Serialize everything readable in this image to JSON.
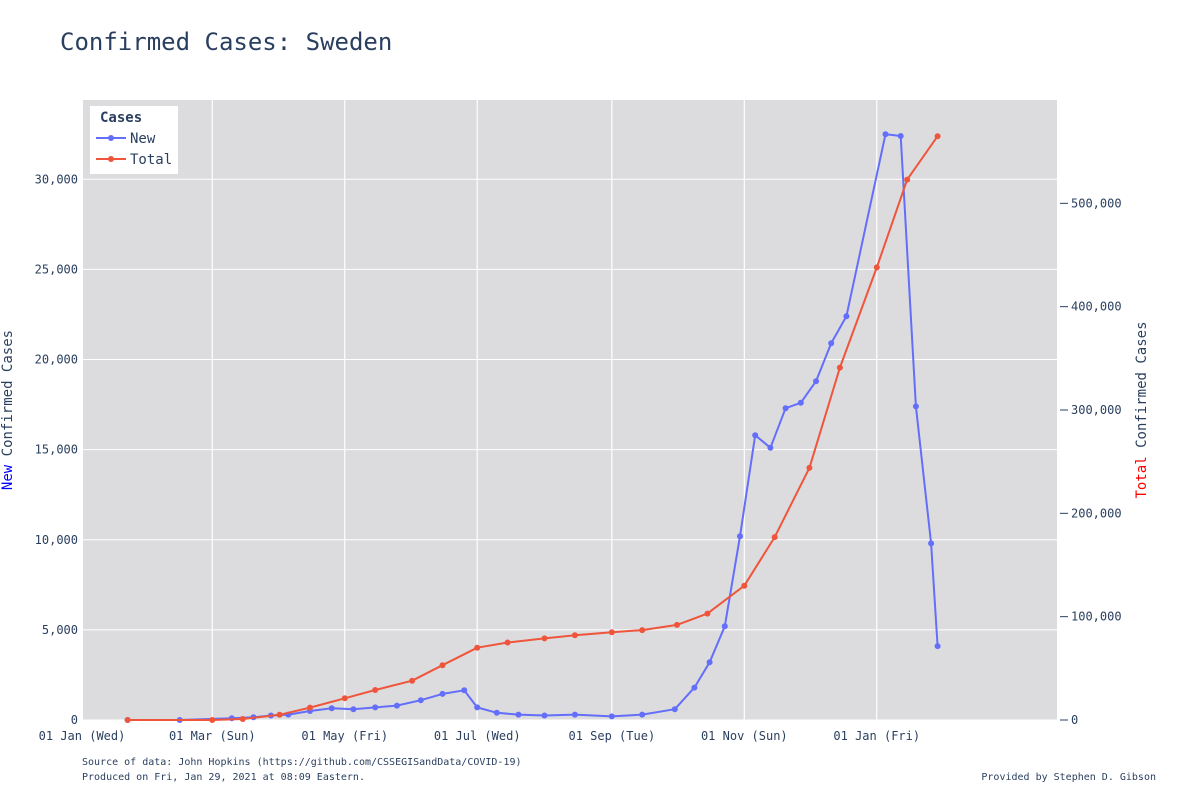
{
  "chart_data": {
    "type": "line",
    "title": "Confirmed Cases: Sweden",
    "legend": {
      "title": "Cases",
      "placement": "top-left"
    },
    "y_left": {
      "label_prefix": "New",
      "label_rest": " Confirmed Cases",
      "prefix_color": "#0000ff",
      "ylim": [
        0,
        34400
      ],
      "ticks": [
        0,
        5000,
        10000,
        15000,
        20000,
        25000,
        30000
      ],
      "tick_labels": [
        "0",
        "5,000",
        "10,000",
        "15,000",
        "20,000",
        "25,000",
        "30,000"
      ]
    },
    "y_right": {
      "label_prefix": "Total",
      "label_rest": " Confirmed Cases",
      "prefix_color": "#ff0000",
      "ylim": [
        0,
        600000
      ],
      "ticks": [
        0,
        100000,
        200000,
        300000,
        400000,
        500000
      ],
      "tick_labels": [
        "0",
        "100,000",
        "200,000",
        "300,000",
        "400,000",
        "500,000"
      ]
    },
    "x_axis": {
      "range_start": "2020-01-01",
      "range_end": "2021-03-25",
      "ticks": [
        "2020-01-01",
        "2020-03-01",
        "2020-05-01",
        "2020-07-01",
        "2020-09-01",
        "2020-11-01",
        "2021-01-01"
      ],
      "tick_labels": [
        "01 Jan (Wed)",
        "01 Mar (Sun)",
        "01 May (Fri)",
        "01 Jul (Wed)",
        "01 Sep (Tue)",
        "01 Nov (Sun)",
        "01 Jan (Fri)"
      ]
    },
    "grid": true,
    "series": [
      {
        "name": "New",
        "axis": "left",
        "color": "#636efa",
        "points": [
          [
            "2020-01-22",
            0
          ],
          [
            "2020-02-15",
            0
          ],
          [
            "2020-03-10",
            100
          ],
          [
            "2020-03-20",
            150
          ],
          [
            "2020-03-28",
            250
          ],
          [
            "2020-04-05",
            300
          ],
          [
            "2020-04-15",
            500
          ],
          [
            "2020-04-25",
            650
          ],
          [
            "2020-05-05",
            600
          ],
          [
            "2020-05-15",
            700
          ],
          [
            "2020-05-25",
            800
          ],
          [
            "2020-06-05",
            1100
          ],
          [
            "2020-06-15",
            1450
          ],
          [
            "2020-06-25",
            1650
          ],
          [
            "2020-07-01",
            700
          ],
          [
            "2020-07-10",
            400
          ],
          [
            "2020-07-20",
            300
          ],
          [
            "2020-08-01",
            250
          ],
          [
            "2020-08-15",
            300
          ],
          [
            "2020-09-01",
            200
          ],
          [
            "2020-09-15",
            300
          ],
          [
            "2020-09-30",
            600
          ],
          [
            "2020-10-09",
            1800
          ],
          [
            "2020-10-16",
            3200
          ],
          [
            "2020-10-23",
            5200
          ],
          [
            "2020-10-30",
            10200
          ],
          [
            "2020-11-06",
            15800
          ],
          [
            "2020-11-13",
            15100
          ],
          [
            "2020-11-20",
            17300
          ],
          [
            "2020-11-27",
            17600
          ],
          [
            "2020-12-04",
            18800
          ],
          [
            "2020-12-11",
            20900
          ],
          [
            "2020-12-18",
            22400
          ],
          [
            "2021-01-05",
            32500
          ],
          [
            "2021-01-12",
            32400
          ],
          [
            "2021-01-19",
            17400
          ],
          [
            "2021-01-26",
            9800
          ],
          [
            "2021-01-29",
            4100
          ]
        ]
      },
      {
        "name": "Total",
        "axis": "right",
        "color": "#ef553b",
        "points": [
          [
            "2020-01-22",
            0
          ],
          [
            "2020-03-01",
            14
          ],
          [
            "2020-03-15",
            1000
          ],
          [
            "2020-04-01",
            5000
          ],
          [
            "2020-04-15",
            12000
          ],
          [
            "2020-05-01",
            21000
          ],
          [
            "2020-05-15",
            29000
          ],
          [
            "2020-06-01",
            38000
          ],
          [
            "2020-06-15",
            53000
          ],
          [
            "2020-07-01",
            70000
          ],
          [
            "2020-07-15",
            75000
          ],
          [
            "2020-08-01",
            79000
          ],
          [
            "2020-08-15",
            82000
          ],
          [
            "2020-09-01",
            85000
          ],
          [
            "2020-09-15",
            87000
          ],
          [
            "2020-10-01",
            92000
          ],
          [
            "2020-10-15",
            103000
          ],
          [
            "2020-11-01",
            130000
          ],
          [
            "2020-11-15",
            177000
          ],
          [
            "2020-12-01",
            244000
          ],
          [
            "2020-12-15",
            341000
          ],
          [
            "2021-01-01",
            438000
          ],
          [
            "2021-01-15",
            523000
          ],
          [
            "2021-01-29",
            565000
          ]
        ]
      }
    ]
  },
  "footer": {
    "source": "Source of data: John Hopkins (https://github.com/CSSEGISandData/COVID-19)",
    "produced": "Produced on Fri, Jan 29, 2021 at 08:09 Eastern.",
    "credit": "Provided by Stephen D. Gibson"
  }
}
